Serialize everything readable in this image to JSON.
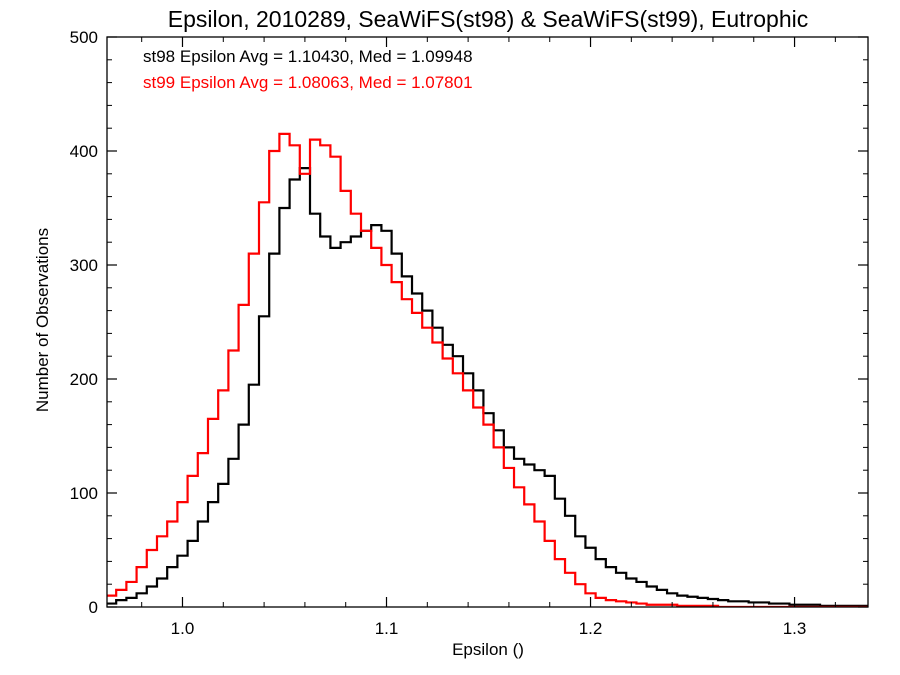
{
  "chart_data": {
    "type": "line",
    "title": "Epsilon, 2010289, SeaWiFS(st98) & SeaWiFS(st99), Eutrophic",
    "xlabel": "Epsilon ()",
    "ylabel": "Number of Observations",
    "xlim": [
      0.963,
      1.336
    ],
    "ylim": [
      0,
      500
    ],
    "x_ticks": [
      1.0,
      1.1,
      1.2,
      1.3
    ],
    "x_tick_labels": [
      "1.0",
      "1.1",
      "1.2",
      "1.3"
    ],
    "y_ticks": [
      0,
      100,
      200,
      300,
      400,
      500
    ],
    "y_tick_labels": [
      "0",
      "100",
      "200",
      "300",
      "400",
      "500"
    ],
    "grid": false,
    "step_style": "histogram",
    "annotations": [
      {
        "text": "st98 Epsilon Avg = 1.10430, Med = 1.09948",
        "color": "#000000"
      },
      {
        "text": "st99 Epsilon Avg = 1.08063, Med = 1.07801",
        "color": "#ff0000"
      }
    ],
    "series": [
      {
        "color": "#000000",
        "x": [
          0.965,
          0.97,
          0.975,
          0.98,
          0.985,
          0.99,
          0.995,
          1.0,
          1.005,
          1.01,
          1.015,
          1.02,
          1.025,
          1.03,
          1.035,
          1.04,
          1.045,
          1.05,
          1.055,
          1.06,
          1.065,
          1.07,
          1.075,
          1.08,
          1.085,
          1.09,
          1.095,
          1.1,
          1.105,
          1.11,
          1.115,
          1.12,
          1.125,
          1.13,
          1.135,
          1.14,
          1.145,
          1.15,
          1.155,
          1.16,
          1.165,
          1.17,
          1.175,
          1.18,
          1.185,
          1.19,
          1.195,
          1.2,
          1.205,
          1.21,
          1.215,
          1.22,
          1.225,
          1.23,
          1.235,
          1.24,
          1.245,
          1.25,
          1.255,
          1.26,
          1.265,
          1.27,
          1.275,
          1.28,
          1.285,
          1.29,
          1.295,
          1.3,
          1.305,
          1.31,
          1.315,
          1.32,
          1.325,
          1.33,
          1.335
        ],
        "y": [
          3,
          6,
          8,
          12,
          18,
          25,
          35,
          45,
          58,
          75,
          92,
          108,
          130,
          160,
          195,
          255,
          310,
          350,
          375,
          385,
          345,
          325,
          315,
          320,
          325,
          330,
          335,
          330,
          310,
          290,
          275,
          260,
          245,
          230,
          220,
          205,
          190,
          170,
          155,
          140,
          130,
          125,
          120,
          115,
          95,
          80,
          62,
          52,
          42,
          35,
          30,
          25,
          22,
          18,
          15,
          12,
          10,
          9,
          8,
          7,
          6,
          5,
          5,
          4,
          4,
          3,
          3,
          2,
          2,
          2,
          1,
          1,
          1,
          1,
          1
        ]
      },
      {
        "color": "#ff0000",
        "x": [
          0.965,
          0.97,
          0.975,
          0.98,
          0.985,
          0.99,
          0.995,
          1.0,
          1.005,
          1.01,
          1.015,
          1.02,
          1.025,
          1.03,
          1.035,
          1.04,
          1.045,
          1.05,
          1.055,
          1.06,
          1.065,
          1.07,
          1.075,
          1.08,
          1.085,
          1.09,
          1.095,
          1.1,
          1.105,
          1.11,
          1.115,
          1.12,
          1.125,
          1.13,
          1.135,
          1.14,
          1.145,
          1.15,
          1.155,
          1.16,
          1.165,
          1.17,
          1.175,
          1.18,
          1.185,
          1.19,
          1.195,
          1.2,
          1.205,
          1.21,
          1.215,
          1.22,
          1.225,
          1.23,
          1.235,
          1.24,
          1.245,
          1.25,
          1.255,
          1.26,
          1.265,
          1.27,
          1.275,
          1.28,
          1.285,
          1.29,
          1.295,
          1.3,
          1.305,
          1.31,
          1.315,
          1.32,
          1.325,
          1.33,
          1.335
        ],
        "y": [
          10,
          15,
          22,
          35,
          50,
          62,
          75,
          92,
          115,
          135,
          165,
          190,
          225,
          265,
          310,
          355,
          400,
          415,
          405,
          380,
          410,
          405,
          395,
          365,
          345,
          330,
          315,
          300,
          285,
          270,
          258,
          245,
          232,
          218,
          205,
          190,
          175,
          160,
          140,
          122,
          105,
          90,
          75,
          58,
          42,
          30,
          20,
          12,
          8,
          6,
          5,
          4,
          3,
          2,
          2,
          2,
          1,
          1,
          1,
          1,
          0,
          0,
          0,
          0,
          0,
          0,
          0,
          0,
          0,
          0,
          0,
          0,
          0,
          0,
          0
        ]
      }
    ]
  }
}
